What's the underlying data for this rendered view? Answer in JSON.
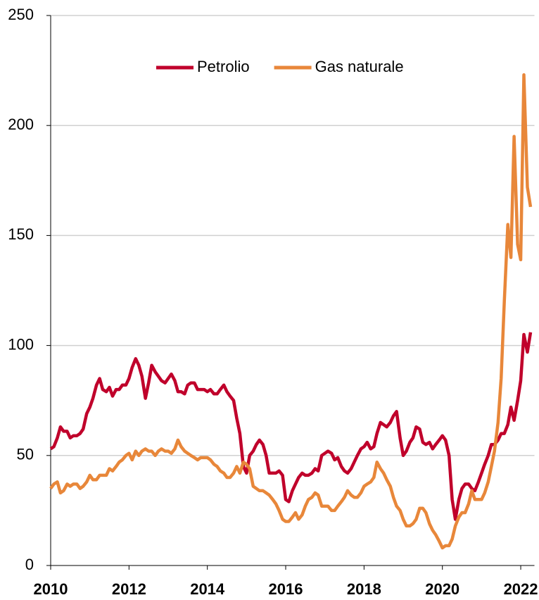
{
  "chart_data": {
    "type": "line",
    "x": [
      2010,
      2010.08,
      2010.17,
      2010.25,
      2010.33,
      2010.42,
      2010.5,
      2010.58,
      2010.67,
      2010.75,
      2010.83,
      2010.92,
      2011,
      2011.08,
      2011.17,
      2011.25,
      2011.33,
      2011.42,
      2011.5,
      2011.58,
      2011.67,
      2011.75,
      2011.83,
      2011.92,
      2012,
      2012.08,
      2012.17,
      2012.25,
      2012.33,
      2012.42,
      2012.5,
      2012.58,
      2012.67,
      2012.75,
      2012.83,
      2012.92,
      2013,
      2013.08,
      2013.17,
      2013.25,
      2013.33,
      2013.42,
      2013.5,
      2013.58,
      2013.67,
      2013.75,
      2013.83,
      2013.92,
      2014,
      2014.08,
      2014.17,
      2014.25,
      2014.33,
      2014.42,
      2014.5,
      2014.58,
      2014.67,
      2014.75,
      2014.83,
      2014.92,
      2015,
      2015.08,
      2015.17,
      2015.25,
      2015.33,
      2015.42,
      2015.5,
      2015.58,
      2015.67,
      2015.75,
      2015.83,
      2015.92,
      2016,
      2016.08,
      2016.17,
      2016.25,
      2016.33,
      2016.42,
      2016.5,
      2016.58,
      2016.67,
      2016.75,
      2016.83,
      2016.92,
      2017,
      2017.08,
      2017.17,
      2017.25,
      2017.33,
      2017.42,
      2017.5,
      2017.58,
      2017.67,
      2017.75,
      2017.83,
      2017.92,
      2018,
      2018.08,
      2018.17,
      2018.25,
      2018.33,
      2018.42,
      2018.5,
      2018.58,
      2018.67,
      2018.75,
      2018.83,
      2018.92,
      2019,
      2019.08,
      2019.17,
      2019.25,
      2019.33,
      2019.42,
      2019.5,
      2019.58,
      2019.67,
      2019.75,
      2019.83,
      2019.92,
      2020,
      2020.08,
      2020.17,
      2020.25,
      2020.33,
      2020.42,
      2020.5,
      2020.58,
      2020.67,
      2020.75,
      2020.83,
      2020.92,
      2021,
      2021.08,
      2021.17,
      2021.25,
      2021.33,
      2021.42,
      2021.5,
      2021.58,
      2021.67,
      2021.75,
      2021.83,
      2021.92,
      2022,
      2022.08,
      2022.17,
      2022.25
    ],
    "series": [
      {
        "name": "Petrolio",
        "color": "#c0002b",
        "values": [
          53,
          54,
          58,
          63,
          61,
          61,
          58,
          59,
          59,
          60,
          62,
          69,
          72,
          76,
          82,
          85,
          80,
          79,
          81,
          77,
          80,
          80,
          82,
          82,
          85,
          90,
          94,
          91,
          86,
          76,
          83,
          91,
          88,
          86,
          84,
          83,
          85,
          87,
          84,
          79,
          79,
          78,
          82,
          83,
          83,
          80,
          80,
          80,
          79,
          80,
          78,
          78,
          80,
          82,
          79,
          77,
          75,
          67,
          60,
          45,
          42,
          50,
          52,
          55,
          57,
          55,
          50,
          42,
          42,
          42,
          43,
          41,
          30,
          29,
          34,
          37,
          40,
          42,
          41,
          41,
          42,
          44,
          43,
          50,
          51,
          52,
          51,
          48,
          49,
          45,
          43,
          42,
          44,
          47,
          50,
          53,
          54,
          56,
          53,
          54,
          60,
          65,
          64,
          63,
          65,
          68,
          70,
          58,
          50,
          52,
          56,
          58,
          63,
          62,
          56,
          55,
          56,
          53,
          55,
          57,
          59,
          57,
          50,
          30,
          21,
          30,
          35,
          37,
          37,
          35,
          34,
          38,
          42,
          46,
          50,
          55,
          55,
          57,
          60,
          60,
          64,
          72,
          66,
          75,
          84,
          105,
          97,
          106
        ]
      },
      {
        "name": "Gas naturale",
        "color": "#e8873a",
        "values": [
          35,
          37,
          38,
          33,
          34,
          37,
          36,
          37,
          37,
          35,
          36,
          38,
          41,
          39,
          39,
          41,
          41,
          41,
          44,
          43,
          45,
          47,
          48,
          50,
          51,
          48,
          52,
          50,
          52,
          53,
          52,
          52,
          50,
          52,
          53,
          52,
          52,
          51,
          53,
          57,
          54,
          52,
          51,
          50,
          49,
          48,
          49,
          49,
          49,
          48,
          46,
          45,
          43,
          42,
          40,
          40,
          42,
          45,
          42,
          47,
          46,
          44,
          36,
          35,
          34,
          34,
          33,
          32,
          30,
          28,
          25,
          21,
          20,
          20,
          22,
          24,
          21,
          23,
          27,
          30,
          31,
          33,
          32,
          27,
          27,
          27,
          25,
          25,
          27,
          29,
          31,
          34,
          32,
          31,
          31,
          33,
          36,
          37,
          38,
          40,
          47,
          44,
          42,
          39,
          36,
          31,
          27,
          25,
          21,
          18,
          18,
          19,
          21,
          26,
          26,
          24,
          19,
          16,
          14,
          11,
          8,
          9,
          9,
          12,
          18,
          22,
          24,
          24,
          28,
          34,
          30,
          30,
          30,
          33,
          38,
          45,
          52,
          65,
          85,
          120,
          155,
          140,
          195,
          146,
          139,
          223,
          172,
          163
        ]
      }
    ],
    "xlim": [
      2010,
      2022.35
    ],
    "xticks": [
      2010,
      2012,
      2014,
      2016,
      2018,
      2020,
      2022
    ],
    "ylim": [
      0,
      250
    ],
    "yticks": [
      0,
      50,
      100,
      150,
      200,
      250
    ],
    "grid": true,
    "legend": "top"
  }
}
